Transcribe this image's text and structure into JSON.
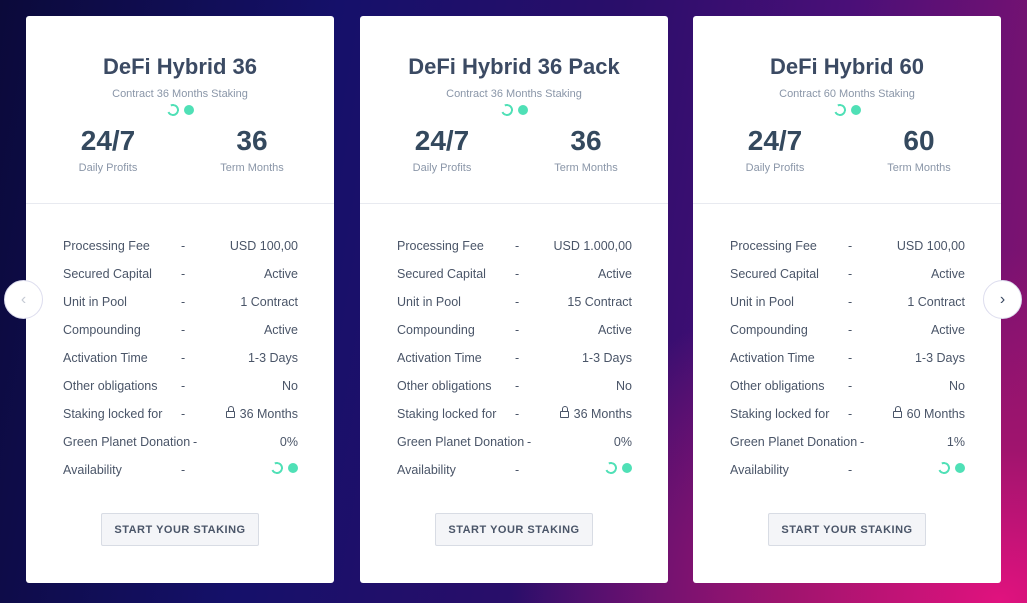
{
  "nav": {
    "prev_icon": "chevron-left-icon",
    "next_icon": "chevron-right-icon",
    "prev_color": "#c5cad4",
    "next_color": "#3b4a63"
  },
  "accent": "#4fe0b6",
  "cards": [
    {
      "title": "DeFi Hybrid 36",
      "subtitle": "Contract 36 Months Staking",
      "stat1": {
        "value": "24/7",
        "label": "Daily Profits"
      },
      "stat2": {
        "value": "36",
        "label": "Term Months"
      },
      "rows": [
        {
          "label": "Processing Fee",
          "sep": "-",
          "value": "USD 100,00"
        },
        {
          "label": "Secured Capital",
          "sep": "-",
          "value": "Active"
        },
        {
          "label": "Unit in Pool",
          "sep": "-",
          "value": "1 Contract"
        },
        {
          "label": "Compounding",
          "sep": "-",
          "value": "Active"
        },
        {
          "label": "Activation Time",
          "sep": "-",
          "value": "1-3 Days"
        },
        {
          "label": "Other obligations",
          "sep": "-",
          "value": "No"
        },
        {
          "label": "Staking locked for",
          "sep": "-",
          "value": "36 Months"
        },
        {
          "label": "Green Planet Donation",
          "sep": "-",
          "value": "0%"
        },
        {
          "label": "Availability",
          "sep": "-",
          "value": ""
        }
      ],
      "button": "START YOUR STAKING"
    },
    {
      "title": "DeFi Hybrid 36 Pack",
      "subtitle": "Contract 36 Months Staking",
      "stat1": {
        "value": "24/7",
        "label": "Daily Profits"
      },
      "stat2": {
        "value": "36",
        "label": "Term Months"
      },
      "rows": [
        {
          "label": "Processing Fee",
          "sep": "-",
          "value": "USD 1.000,00"
        },
        {
          "label": "Secured Capital",
          "sep": "-",
          "value": "Active"
        },
        {
          "label": "Unit in Pool",
          "sep": "-",
          "value": "15 Contract"
        },
        {
          "label": "Compounding",
          "sep": "-",
          "value": "Active"
        },
        {
          "label": "Activation Time",
          "sep": "-",
          "value": "1-3 Days"
        },
        {
          "label": "Other obligations",
          "sep": "-",
          "value": "No"
        },
        {
          "label": "Staking locked for",
          "sep": "-",
          "value": "36 Months"
        },
        {
          "label": "Green Planet Donation",
          "sep": "-",
          "value": "0%"
        },
        {
          "label": "Availability",
          "sep": "-",
          "value": ""
        }
      ],
      "button": "START YOUR STAKING"
    },
    {
      "title": "DeFi Hybrid 60",
      "subtitle": "Contract 60 Months Staking",
      "stat1": {
        "value": "24/7",
        "label": "Daily Profits"
      },
      "stat2": {
        "value": "60",
        "label": "Term Months"
      },
      "rows": [
        {
          "label": "Processing Fee",
          "sep": "-",
          "value": "USD 100,00"
        },
        {
          "label": "Secured Capital",
          "sep": "-",
          "value": "Active"
        },
        {
          "label": "Unit in Pool",
          "sep": "-",
          "value": "1 Contract"
        },
        {
          "label": "Compounding",
          "sep": "-",
          "value": "Active"
        },
        {
          "label": "Activation Time",
          "sep": "-",
          "value": "1-3 Days"
        },
        {
          "label": "Other obligations",
          "sep": "-",
          "value": "No"
        },
        {
          "label": "Staking locked for",
          "sep": "-",
          "value": "60 Months"
        },
        {
          "label": "Green Planet Donation",
          "sep": "-",
          "value": "1%"
        },
        {
          "label": "Availability",
          "sep": "-",
          "value": ""
        }
      ],
      "button": "START YOUR STAKING"
    }
  ]
}
